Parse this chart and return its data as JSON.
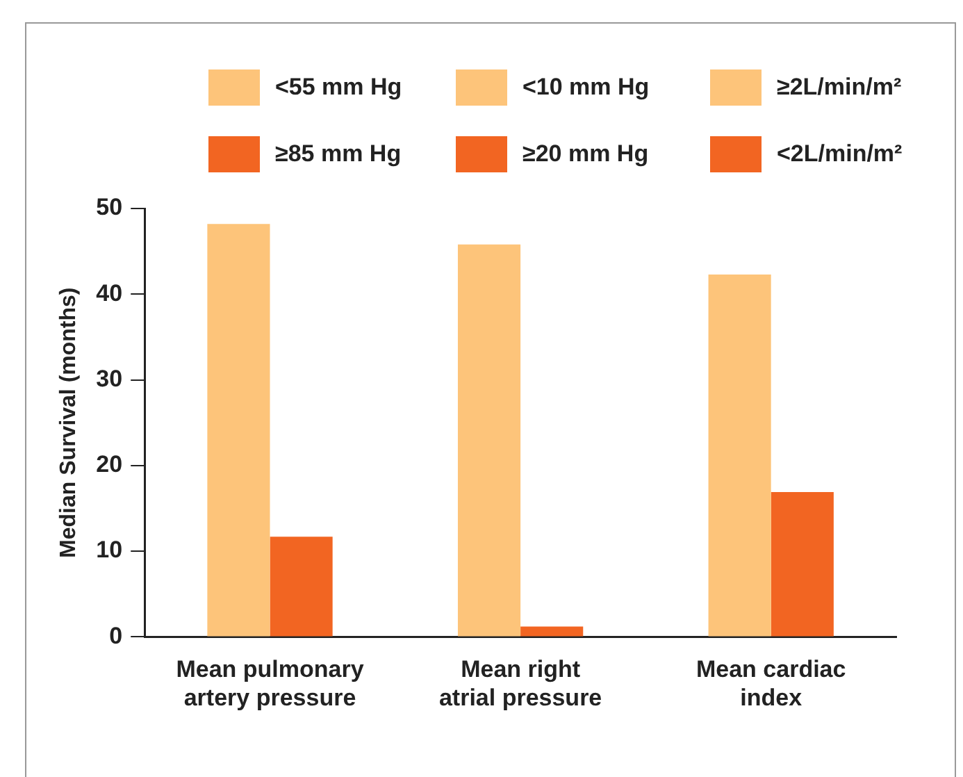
{
  "chart_data": {
    "type": "bar",
    "ylabel": "Median Survival (months)",
    "categories": [
      "Mean pulmonary artery pressure",
      "Mean right atrial pressure",
      "Mean cardiac index"
    ],
    "series": [
      {
        "name": "<55 mm Hg",
        "color": "#fdc47a",
        "values": [
          48.2,
          null,
          null
        ]
      },
      {
        "name": "<10 mm Hg",
        "color": "#fdc47a",
        "values": [
          null,
          45.8,
          null
        ]
      },
      {
        "name": "≥2L/min/m²",
        "color": "#fdc47a",
        "values": [
          null,
          null,
          42.3
        ]
      },
      {
        "name": "≥85 mm Hg",
        "color": "#f26522",
        "values": [
          11.7,
          null,
          null
        ]
      },
      {
        "name": "≥20 mm Hg",
        "color": "#f26522",
        "values": [
          null,
          1.2,
          null
        ]
      },
      {
        "name": "<2L/min/m²",
        "color": "#f26522",
        "values": [
          null,
          null,
          16.9
        ]
      }
    ],
    "ylim": [
      0,
      50
    ],
    "yticks": [
      0,
      10,
      20,
      30,
      40,
      50
    ],
    "legend": "top"
  }
}
